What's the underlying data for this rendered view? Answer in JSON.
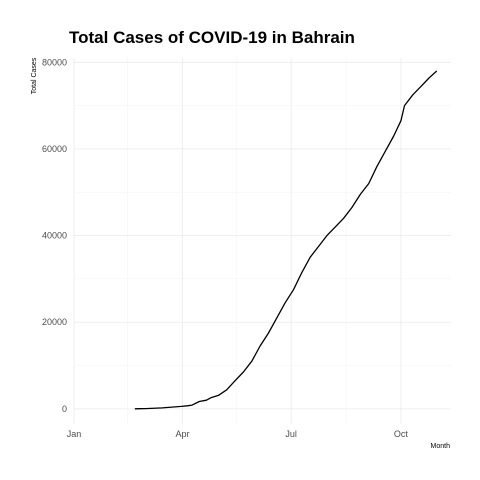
{
  "chart_data": {
    "type": "line",
    "title": "Total Cases of COVID-19 in Bahrain",
    "xlabel": "Month",
    "ylabel": "Total Cases",
    "x_ticks": [
      "Jan",
      "Apr",
      "Jul",
      "Oct"
    ],
    "y_ticks": [
      0,
      20000,
      40000,
      60000,
      80000
    ],
    "xlim": [
      "2020-01-01",
      "2020-11-12"
    ],
    "ylim": [
      -3500,
      81000
    ],
    "grid": true,
    "legend": "none",
    "series": [
      {
        "x": [
          "2020-02-21",
          "2020-02-25",
          "2020-03-01",
          "2020-03-15",
          "2020-03-31",
          "2020-04-05",
          "2020-04-09",
          "2020-04-15",
          "2020-04-21",
          "2020-04-25",
          "2020-05-01",
          "2020-05-08",
          "2020-05-15",
          "2020-05-22",
          "2020-05-29",
          "2020-06-05",
          "2020-06-12",
          "2020-06-19",
          "2020-06-26",
          "2020-07-03",
          "2020-07-10",
          "2020-07-17",
          "2020-07-24",
          "2020-07-31",
          "2020-08-07",
          "2020-08-14",
          "2020-08-21",
          "2020-08-28",
          "2020-09-04",
          "2020-09-11",
          "2020-09-18",
          "2020-09-25",
          "2020-10-01",
          "2020-10-04",
          "2020-10-11",
          "2020-10-18",
          "2020-10-25",
          "2020-10-31"
        ],
        "y": [
          1,
          33,
          50,
          214,
          567,
          700,
          860,
          1700,
          2000,
          2600,
          3100,
          4400,
          6500,
          8500,
          11000,
          14500,
          17500,
          21000,
          24500,
          27500,
          31500,
          35000,
          37500,
          40000,
          42000,
          44000,
          46500,
          49500,
          52000,
          56000,
          59500,
          63000,
          66500,
          70000,
          72500,
          74500,
          76500,
          78000
        ]
      }
    ]
  }
}
